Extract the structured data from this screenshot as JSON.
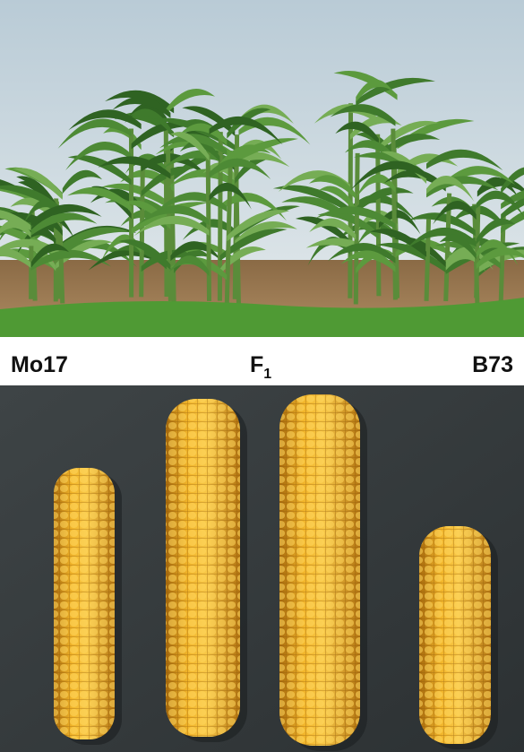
{
  "labels": [
    {
      "text": "Mo17"
    },
    {
      "text": "F",
      "subscript": "1"
    },
    {
      "text": "B73"
    }
  ]
}
